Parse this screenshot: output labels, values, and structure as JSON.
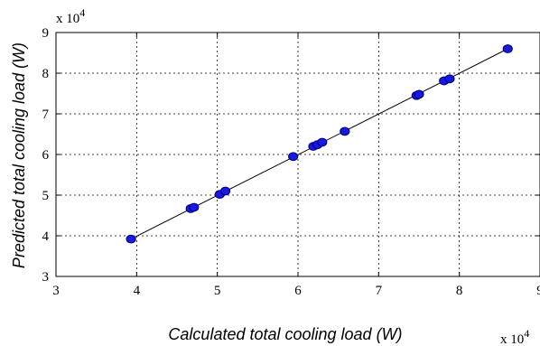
{
  "chart_data": {
    "type": "scatter",
    "xlabel": "Calculated total cooling load (W)",
    "ylabel": "Predicted total cooling load (W)",
    "x_multiplier_label": "x 10",
    "x_multiplier_exp": "4",
    "y_multiplier_label": "x 10",
    "y_multiplier_exp": "4",
    "xlim": [
      3,
      9
    ],
    "ylim": [
      3,
      9
    ],
    "xticks": [
      "3",
      "4",
      "5",
      "6",
      "7",
      "8",
      "9"
    ],
    "yticks": [
      "3",
      "4",
      "5",
      "6",
      "7",
      "8",
      "9"
    ],
    "grid": true,
    "fit_line": {
      "x": [
        3.93,
        8.6
      ],
      "y": [
        3.92,
        8.6
      ]
    },
    "points": [
      {
        "x": 3.93,
        "y": 3.92
      },
      {
        "x": 4.67,
        "y": 4.67
      },
      {
        "x": 4.71,
        "y": 4.7
      },
      {
        "x": 5.03,
        "y": 5.02
      },
      {
        "x": 5.1,
        "y": 5.1
      },
      {
        "x": 5.94,
        "y": 5.95
      },
      {
        "x": 6.19,
        "y": 6.2
      },
      {
        "x": 6.24,
        "y": 6.24
      },
      {
        "x": 6.3,
        "y": 6.3
      },
      {
        "x": 6.58,
        "y": 6.57
      },
      {
        "x": 7.47,
        "y": 7.45
      },
      {
        "x": 7.5,
        "y": 7.48
      },
      {
        "x": 7.81,
        "y": 7.81
      },
      {
        "x": 7.88,
        "y": 7.86
      },
      {
        "x": 8.6,
        "y": 8.6
      }
    ],
    "marker_color": "#1a1adf",
    "marker_edge_color": "#00008b",
    "line_color": "#000000"
  }
}
